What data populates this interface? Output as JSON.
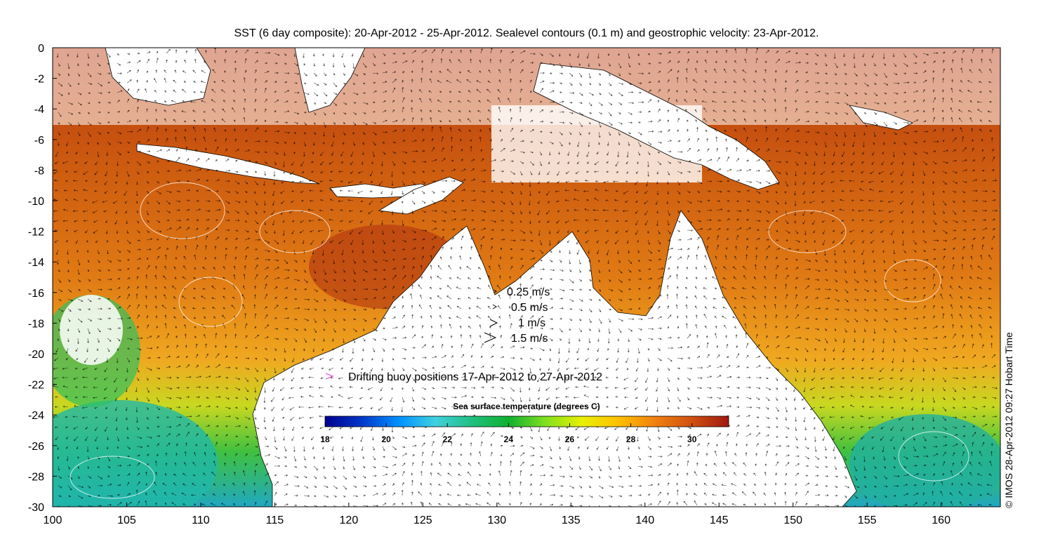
{
  "title": "SST (6 day composite): 20-Apr-2012 - 25-Apr-2012. Sealevel contours (0.1 m) and geostrophic velocity: 23-Apr-2012.",
  "credit": "© IMOS 28-Apr-2012 09:27 Hobart Time",
  "x_axis": {
    "ticks": [
      "100",
      "105",
      "110",
      "115",
      "120",
      "125",
      "130",
      "135",
      "140",
      "145",
      "150",
      "155",
      "160"
    ]
  },
  "y_axis": {
    "ticks": [
      "0",
      "-2",
      "-4",
      "-6",
      "-8",
      "-10",
      "-12",
      "-14",
      "-16",
      "-18",
      "-20",
      "-22",
      "-24",
      "-26",
      "-28",
      "-30"
    ]
  },
  "velocity_legend": [
    {
      "label": "0.25 m/s",
      "speed": 0.25
    },
    {
      "label": "0.5 m/s",
      "speed": 0.5
    },
    {
      "label": "1 m/s",
      "speed": 1
    },
    {
      "label": "1.5 m/s",
      "speed": 1.5
    }
  ],
  "buoy_legend": {
    "label": "Drifting buoy positions 17-Apr-2012 to 27-Apr-2012",
    "color": "#e040e0"
  },
  "colorbar": {
    "title": "Sea surface temperature (degrees C)",
    "ticks": [
      "18",
      "20",
      "22",
      "24",
      "26",
      "28",
      "30"
    ],
    "range": [
      18,
      31.2
    ],
    "stops": [
      "#00008f",
      "#0038c8",
      "#0090ff",
      "#40d0e0",
      "#20c080",
      "#10b030",
      "#80e020",
      "#e8f000",
      "#ffc000",
      "#f08010",
      "#d05010",
      "#a01810"
    ]
  },
  "colors": {
    "ocean_warm": "#c8580e",
    "ocean_mid": "#f0a020",
    "ocean_cool": "#30c040",
    "land": "#ffffff",
    "coast": "#000000"
  }
}
